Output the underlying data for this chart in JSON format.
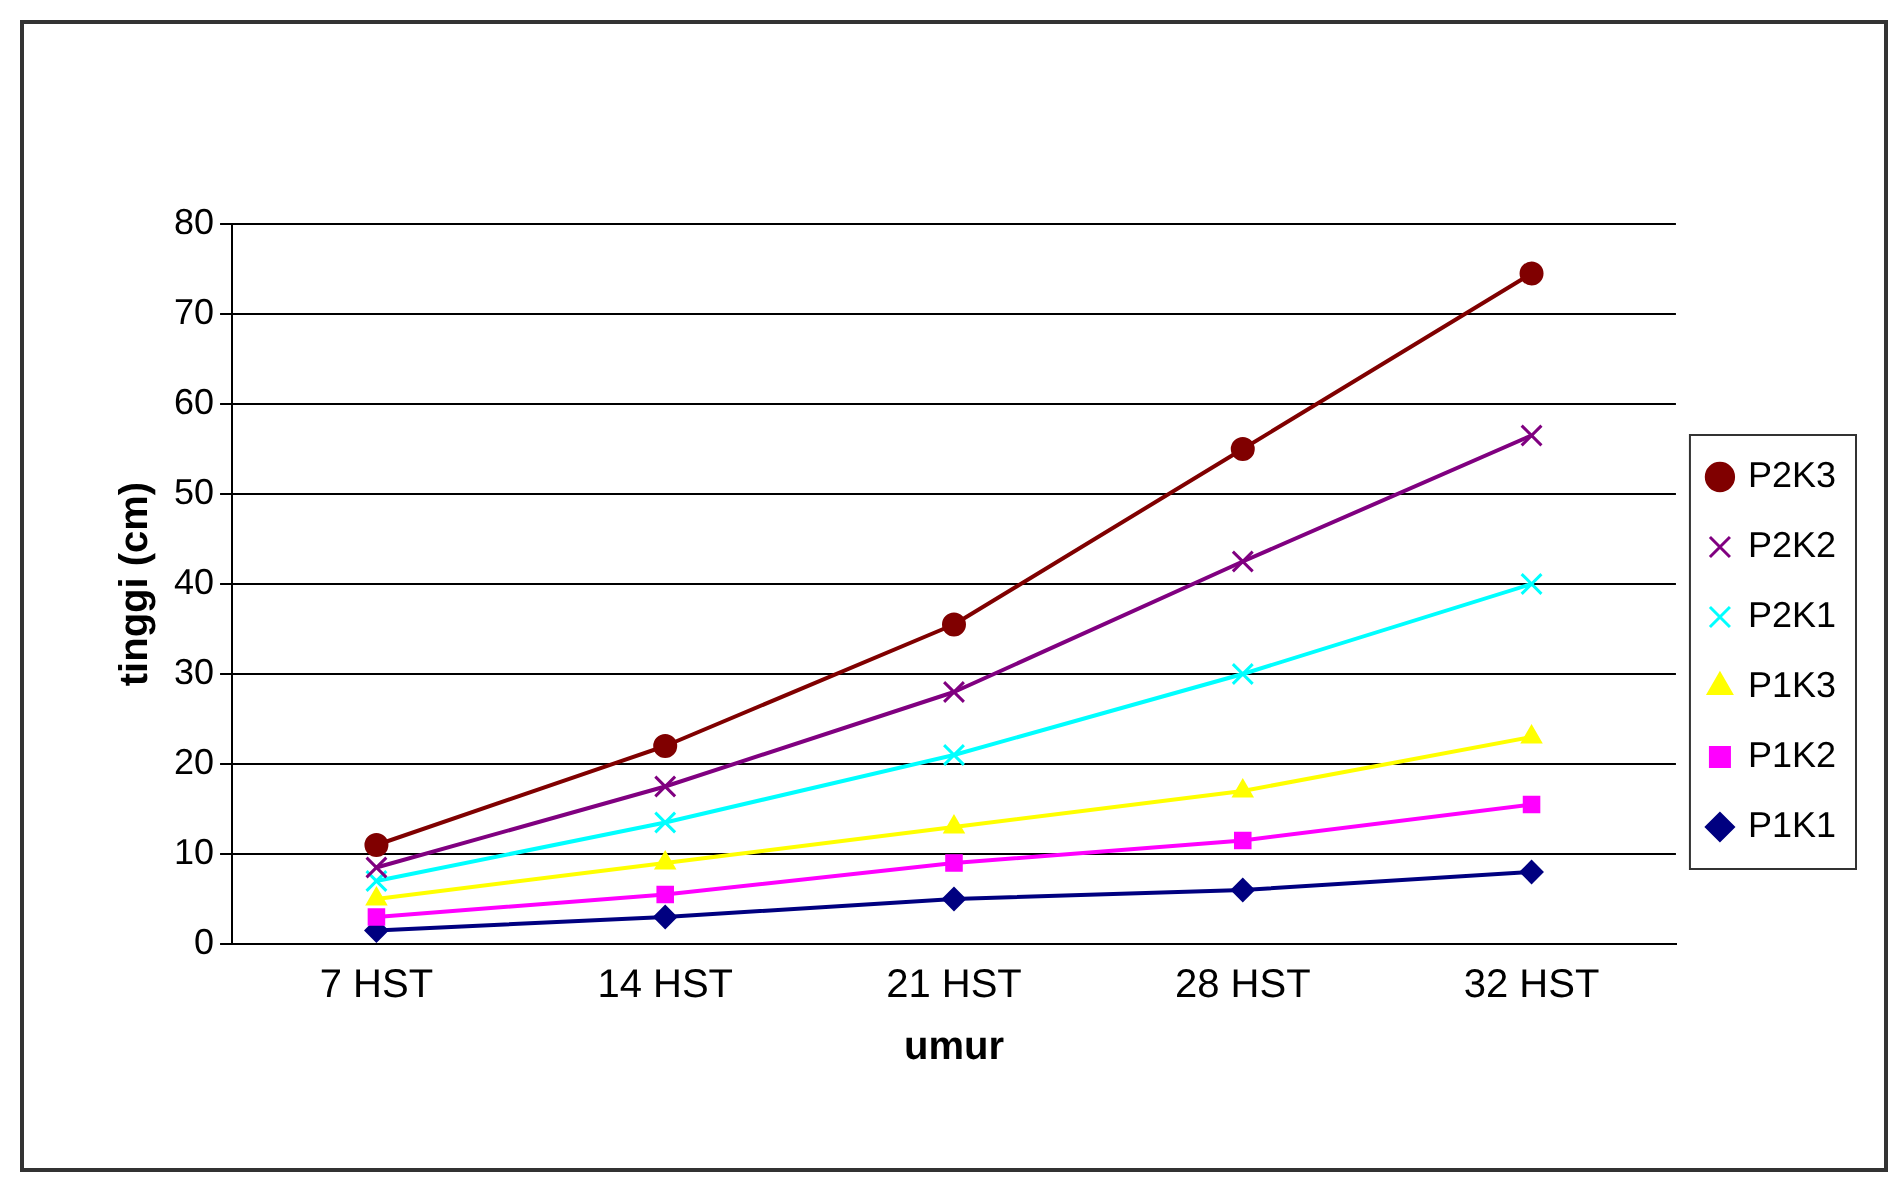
{
  "chart_data": {
    "type": "line",
    "xlabel": "umur",
    "ylabel": "tinggi (cm)",
    "categories": [
      "7 HST",
      "14 HST",
      "21 HST",
      "28 HST",
      "32 HST"
    ],
    "ylim": [
      0,
      80
    ],
    "yticks": [
      0,
      10,
      20,
      30,
      40,
      50,
      60,
      70,
      80
    ],
    "grid": "y",
    "legend": "right",
    "series": [
      {
        "name": "P2K3",
        "color": "#800000",
        "marker": "circle",
        "values": [
          11,
          22,
          35.5,
          55,
          74.5
        ]
      },
      {
        "name": "P2K2",
        "color": "#800080",
        "marker": "cross",
        "values": [
          8.5,
          17.5,
          28,
          42.5,
          56.5
        ]
      },
      {
        "name": "P2K1",
        "color": "#00ffff",
        "marker": "cross",
        "values": [
          7,
          13.5,
          21,
          30,
          40
        ]
      },
      {
        "name": "P1K3",
        "color": "#ffff00",
        "marker": "triangle",
        "values": [
          5,
          9,
          13,
          17,
          23
        ]
      },
      {
        "name": "P1K2",
        "color": "#ff00ff",
        "marker": "square",
        "values": [
          3,
          5.5,
          9,
          11.5,
          15.5
        ]
      },
      {
        "name": "P1K1",
        "color": "#000080",
        "marker": "diamond",
        "values": [
          1.5,
          3,
          5,
          6,
          8
        ]
      }
    ]
  }
}
